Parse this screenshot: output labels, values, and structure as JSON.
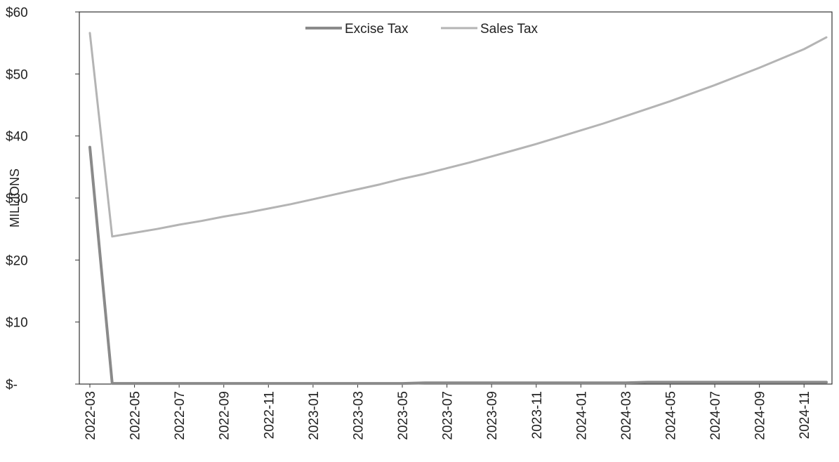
{
  "chart_data": {
    "type": "line",
    "title": "",
    "xlabel": "",
    "ylabel": "MILLIONS",
    "ylim": [
      0,
      60
    ],
    "y_ticks": [
      0,
      10,
      20,
      30,
      40,
      50,
      60
    ],
    "y_tick_labels": [
      "$-",
      "$10",
      "$20",
      "$30",
      "$40",
      "$50",
      "$60"
    ],
    "x_tick_labels": [
      "2022-03",
      "2022-05",
      "2022-07",
      "2022-09",
      "2022-11",
      "2023-01",
      "2023-03",
      "2023-05",
      "2023-07",
      "2023-09",
      "2023-11",
      "2024-01",
      "2024-03",
      "2024-05",
      "2024-07",
      "2024-09",
      "2024-11"
    ],
    "x": [
      "2022-03",
      "2022-04",
      "2022-05",
      "2022-06",
      "2022-07",
      "2022-08",
      "2022-09",
      "2022-10",
      "2022-11",
      "2022-12",
      "2023-01",
      "2023-02",
      "2023-03",
      "2023-04",
      "2023-05",
      "2023-06",
      "2023-07",
      "2023-08",
      "2023-09",
      "2023-10",
      "2023-11",
      "2023-12",
      "2024-01",
      "2024-02",
      "2024-03",
      "2024-04",
      "2024-05",
      "2024-06",
      "2024-07",
      "2024-08",
      "2024-09",
      "2024-10",
      "2024-11",
      "2024-12"
    ],
    "legend_position": "top-center",
    "grid": false,
    "series": [
      {
        "name": "Excise Tax",
        "color": "#8a8a8a",
        "values": [
          38.2,
          0.1,
          0.1,
          0.1,
          0.1,
          0.1,
          0.1,
          0.1,
          0.1,
          0.1,
          0.1,
          0.1,
          0.1,
          0.1,
          0.1,
          0.2,
          0.2,
          0.2,
          0.2,
          0.2,
          0.2,
          0.2,
          0.2,
          0.2,
          0.2,
          0.3,
          0.3,
          0.3,
          0.3,
          0.3,
          0.3,
          0.3,
          0.3,
          0.3
        ]
      },
      {
        "name": "Sales Tax",
        "color": "#b4b4b4",
        "values": [
          56.6,
          23.8,
          24.4,
          25.0,
          25.7,
          26.3,
          27.0,
          27.6,
          28.3,
          29.0,
          29.8,
          30.6,
          31.4,
          32.2,
          33.1,
          33.9,
          34.8,
          35.7,
          36.7,
          37.7,
          38.7,
          39.8,
          40.9,
          42.0,
          43.2,
          44.4,
          45.6,
          46.9,
          48.2,
          49.6,
          51.0,
          52.5,
          54.0,
          55.9
        ]
      }
    ]
  }
}
